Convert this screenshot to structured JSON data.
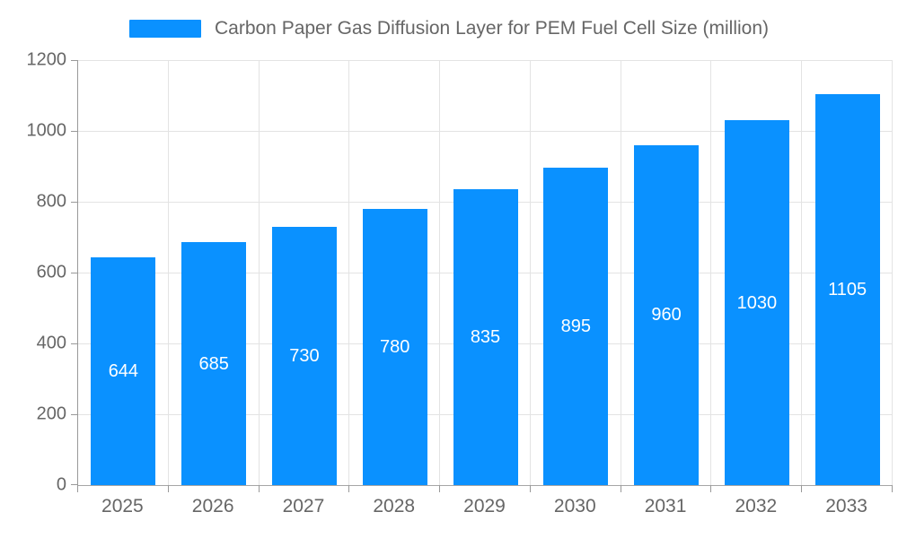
{
  "chart_data": {
    "type": "bar",
    "title": "Carbon Paper Gas Diffusion Layer for PEM Fuel Cell Size (million)",
    "categories": [
      "2025",
      "2026",
      "2027",
      "2028",
      "2029",
      "2030",
      "2031",
      "2032",
      "2033"
    ],
    "values": [
      644,
      685,
      730,
      780,
      835,
      895,
      960,
      1030,
      1105
    ],
    "xlabel": "",
    "ylabel": "",
    "ylim": [
      0,
      1200
    ],
    "yticks": [
      0,
      200,
      400,
      600,
      800,
      1000,
      1200
    ],
    "grid": true,
    "legend_position": "top",
    "value_labels": "inside-center",
    "colors": {
      "bar": "#0a91ff",
      "bar_value_text": "#ffffff",
      "axis_text": "#666666",
      "legend_text": "#666666",
      "grid_line": "#e3e3e3",
      "axis_line": "#999999",
      "background": "#ffffff"
    }
  }
}
